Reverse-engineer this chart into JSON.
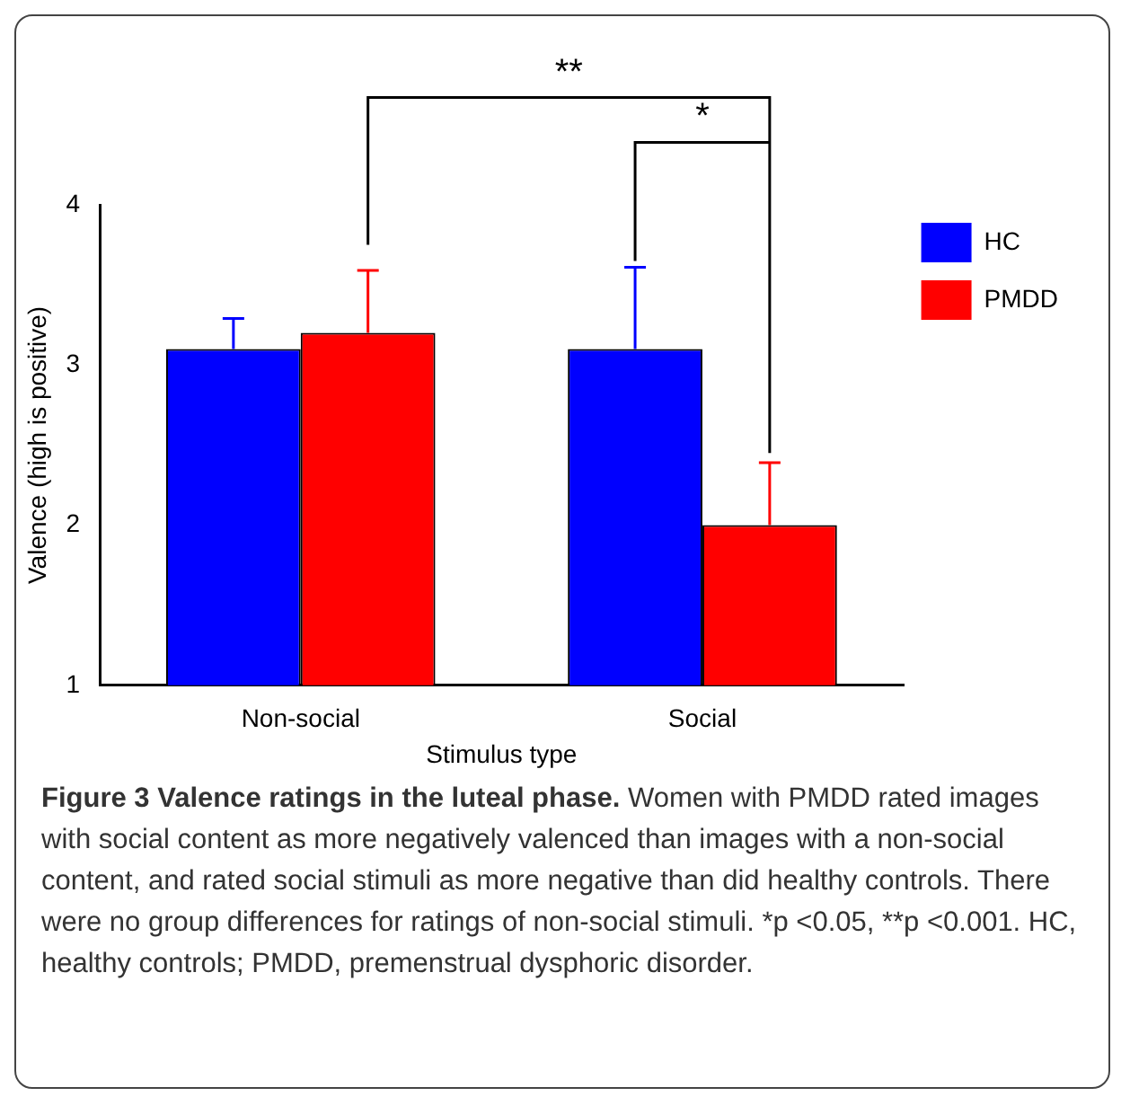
{
  "chart_data": {
    "type": "bar",
    "title": "Figure 3 Valence ratings in the luteal phase.",
    "xlabel": "Stimulus type",
    "ylabel": "Valence (high is positive)",
    "categories": [
      "Non-social",
      "Social"
    ],
    "series": [
      {
        "name": "HC",
        "color": "#0000ff",
        "values": [
          3.1,
          3.1
        ],
        "errors": [
          [
            3.1,
            3.29
          ],
          [
            3.1,
            3.61
          ]
        ]
      },
      {
        "name": "PMDD",
        "color": "#ff0000",
        "values": [
          3.2,
          2.0
        ],
        "errors": [
          [
            3.2,
            3.59
          ],
          [
            2.0,
            2.39
          ]
        ]
      }
    ],
    "ylim": [
      1,
      4
    ],
    "yticks": [
      1,
      2,
      3,
      4
    ],
    "grid": false,
    "legend": "top right",
    "annotations": [
      "**",
      "*",
      "Women with PMDD rated images with social content as more negatively valenced than images with a non-social content, and rated social stimuli as more negative than did healthy controls. There were no group differences for ratings of non-social stimuli. *p <0.05, **p <0.001. HC, healthy controls; PMDD, premenstrual dysphoric disorder."
    ]
  }
}
